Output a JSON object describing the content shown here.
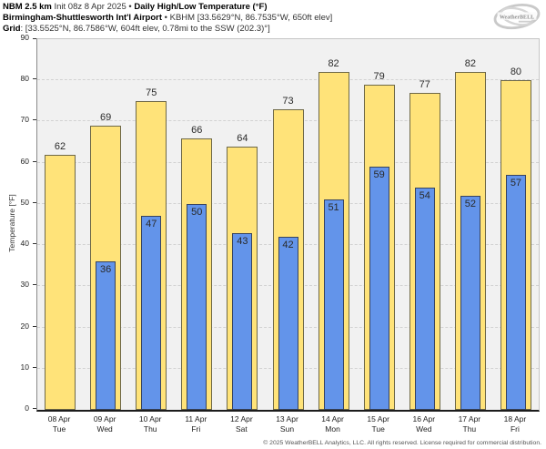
{
  "header": {
    "model": "NBM 2.5 km",
    "init": "Init 08z 8 Apr 2025",
    "separator": "•",
    "product": "Daily High/Low Temperature (°F)",
    "station": "Birmingham-Shuttlesworth Int'l Airport",
    "station_details": "KBHM [33.5629°N, 86.7535°W, 650ft elev]",
    "grid_label": "Grid",
    "grid_details": ": [33.5525°N, 86.7586°W, 604ft elev, 0.78mi to the SSW (202.3)°]"
  },
  "logo": {
    "text": "WeatherBELL"
  },
  "chart_data": {
    "type": "bar",
    "title": "Daily High/Low Temperature (°F)",
    "categories": [
      {
        "date": "08 Apr",
        "day": "Tue"
      },
      {
        "date": "09 Apr",
        "day": "Wed"
      },
      {
        "date": "10 Apr",
        "day": "Thu"
      },
      {
        "date": "11 Apr",
        "day": "Fri"
      },
      {
        "date": "12 Apr",
        "day": "Sat"
      },
      {
        "date": "13 Apr",
        "day": "Sun"
      },
      {
        "date": "14 Apr",
        "day": "Mon"
      },
      {
        "date": "15 Apr",
        "day": "Tue"
      },
      {
        "date": "16 Apr",
        "day": "Wed"
      },
      {
        "date": "17 Apr",
        "day": "Thu"
      },
      {
        "date": "18 Apr",
        "day": "Fri"
      }
    ],
    "series": [
      {
        "name": "High",
        "color": "#ffe379",
        "border": "#6e6847",
        "values": [
          62,
          69,
          75,
          66,
          64,
          73,
          82,
          79,
          77,
          82,
          80
        ]
      },
      {
        "name": "Low",
        "color": "#6394ea",
        "border": "#38445e",
        "values": [
          null,
          36,
          47,
          50,
          43,
          42,
          51,
          59,
          54,
          52,
          57
        ]
      }
    ],
    "ylabel": "Temperature [°F]",
    "ylim": [
      0,
      90
    ],
    "yticks": [
      0,
      10,
      20,
      30,
      40,
      50,
      60,
      70,
      80,
      90
    ],
    "grid": "horizontal-dashed",
    "legend": "none",
    "plot_bg": "#f1f1f1"
  },
  "footer": {
    "copyright": "© 2025 WeatherBELL Analytics, LLC. All rights reserved. License required for commercial distribution."
  }
}
